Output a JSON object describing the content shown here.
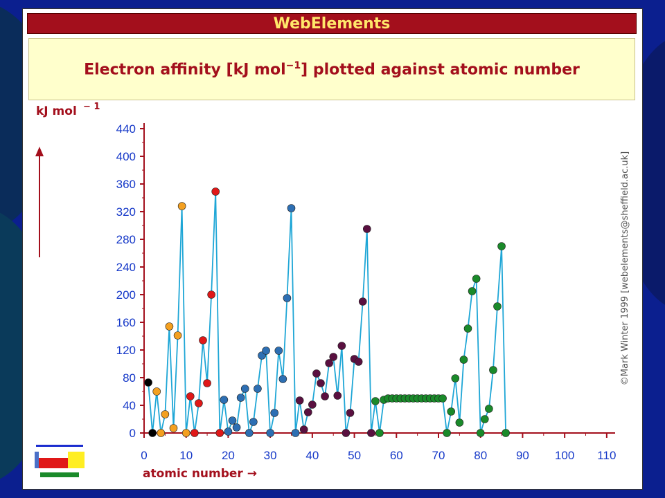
{
  "window": {
    "title": "WebElements",
    "subtitle_text": "Electron affinity [kJ mol",
    "subtitle_sup": "−1",
    "subtitle_rest": "] plotted against atomic number",
    "credit": "©Mark Winter 1999 [webelements@sheffield.ac.uk]"
  },
  "colors": {
    "slide_bg": "#0b1f8f",
    "title_bar": "#a30f1c",
    "title_text": "#ffe86a",
    "subtitle_bg": "#ffffcc",
    "axis": "#a30f1c",
    "tick_label": "#1538c8",
    "line": "#1ea6d6",
    "group_colors": {
      "s-block-1": "#000000",
      "s-block-2": "#f4a020",
      "p-block-2": "#f4a020",
      "p-block-3": "#e01818",
      "d-block-4": "#2d6fb3",
      "p-block-4": "#2d6fb3",
      "p-block-5": "#5a1040",
      "d-block-5": "#5a1040",
      "f-block": "#1a8a2a",
      "d-block-6": "#1a8a2a"
    }
  },
  "chart_data": {
    "type": "line",
    "title": "Electron affinity [kJ mol−1] plotted against atomic number",
    "ylabel": "kJ mol",
    "ylabel_sup": "− 1",
    "xlabel": "atomic number →",
    "xlim": [
      0,
      112
    ],
    "ylim": [
      0,
      440
    ],
    "xticks": [
      0,
      10,
      20,
      30,
      40,
      50,
      60,
      70,
      80,
      90,
      100,
      110
    ],
    "yticks": [
      0,
      40,
      80,
      120,
      160,
      200,
      240,
      280,
      320,
      360,
      400,
      440
    ],
    "grid": false,
    "legend": "periodic table icon, bottom-left",
    "series": [
      {
        "x": [
          1,
          2,
          3,
          4,
          5,
          6,
          7,
          8,
          9,
          10,
          11,
          12,
          13,
          14,
          15,
          16,
          17,
          18,
          19,
          20,
          21,
          22,
          23,
          24,
          25,
          26,
          27,
          28,
          29,
          30,
          31,
          32,
          33,
          34,
          35,
          36,
          37,
          38,
          39,
          40,
          41,
          42,
          43,
          44,
          45,
          46,
          47,
          48,
          49,
          50,
          51,
          52,
          53,
          54,
          55,
          56,
          57,
          58,
          59,
          60,
          61,
          62,
          63,
          64,
          65,
          66,
          67,
          68,
          69,
          70,
          71,
          72,
          73,
          74,
          75,
          76,
          77,
          78,
          79,
          80,
          81,
          82,
          83,
          84,
          85,
          86
        ],
        "y": [
          73,
          0,
          60,
          0,
          27,
          154,
          7,
          141,
          328,
          0,
          53,
          0,
          43,
          134,
          72,
          200,
          349,
          0,
          48,
          2,
          18,
          8,
          51,
          64,
          0,
          16,
          64,
          112,
          119,
          0,
          29,
          119,
          78,
          195,
          325,
          0,
          47,
          5,
          30,
          41,
          86,
          72,
          53,
          101,
          110,
          54,
          126,
          0,
          29,
          107,
          103,
          190,
          295,
          0,
          46,
          0,
          48,
          50,
          50,
          50,
          50,
          50,
          50,
          50,
          50,
          50,
          50,
          50,
          50,
          50,
          50,
          0,
          31,
          79,
          15,
          106,
          151,
          205,
          223,
          0,
          20,
          35,
          91,
          183,
          270,
          0
        ],
        "group": [
          "s-block-1",
          "s-block-1",
          "s-block-2",
          "s-block-2",
          "p-block-2",
          "p-block-2",
          "p-block-2",
          "p-block-2",
          "p-block-2",
          "p-block-2",
          "p-block-3",
          "p-block-3",
          "p-block-3",
          "p-block-3",
          "p-block-3",
          "p-block-3",
          "p-block-3",
          "p-block-3",
          "d-block-4",
          "d-block-4",
          "d-block-4",
          "d-block-4",
          "d-block-4",
          "d-block-4",
          "d-block-4",
          "d-block-4",
          "d-block-4",
          "d-block-4",
          "d-block-4",
          "d-block-4",
          "p-block-4",
          "p-block-4",
          "p-block-4",
          "p-block-4",
          "p-block-4",
          "p-block-4",
          "p-block-5",
          "p-block-5",
          "p-block-5",
          "p-block-5",
          "p-block-5",
          "p-block-5",
          "p-block-5",
          "p-block-5",
          "p-block-5",
          "p-block-5",
          "p-block-5",
          "p-block-5",
          "p-block-5",
          "p-block-5",
          "p-block-5",
          "p-block-5",
          "p-block-5",
          "p-block-5",
          "f-block",
          "f-block",
          "f-block",
          "f-block",
          "f-block",
          "f-block",
          "f-block",
          "f-block",
          "f-block",
          "f-block",
          "f-block",
          "f-block",
          "f-block",
          "f-block",
          "f-block",
          "f-block",
          "f-block",
          "d-block-6",
          "d-block-6",
          "d-block-6",
          "d-block-6",
          "d-block-6",
          "d-block-6",
          "d-block-6",
          "d-block-6",
          "d-block-6",
          "d-block-6",
          "d-block-6",
          "d-block-6",
          "d-block-6",
          "d-block-6",
          "d-block-6"
        ]
      }
    ]
  }
}
